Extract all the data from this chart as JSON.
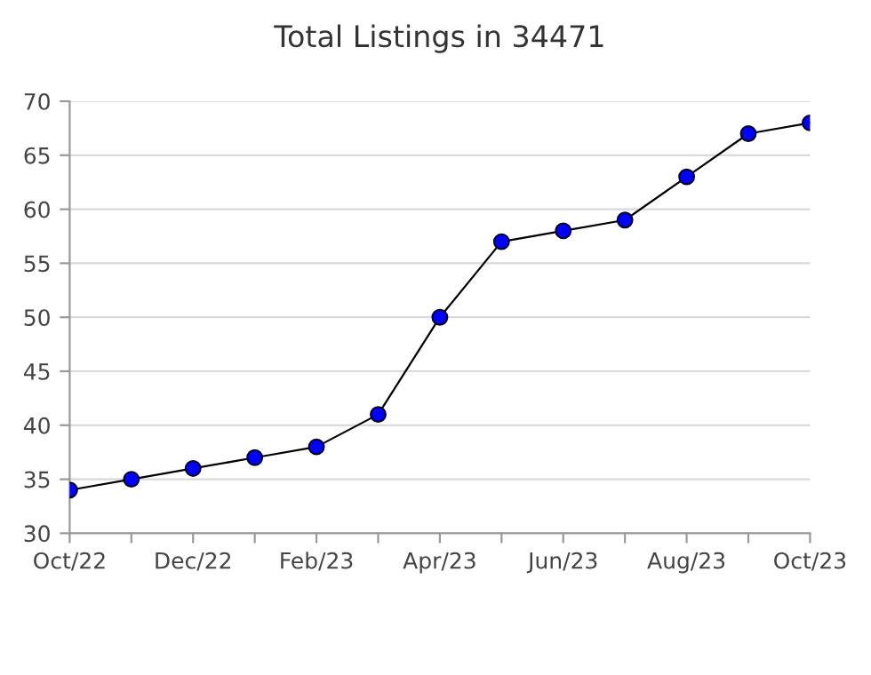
{
  "chart_data": {
    "type": "line",
    "title": "Total Listings in 34471",
    "categories": [
      "Oct/22",
      null,
      "Dec/22",
      null,
      "Feb/23",
      null,
      "Apr/23",
      null,
      "Jun/23",
      null,
      "Aug/23",
      null,
      "Oct/23"
    ],
    "series": [
      {
        "color": "#0000ff",
        "values": [
          34,
          35,
          36,
          37,
          38,
          41,
          50,
          57,
          58,
          59,
          63,
          67,
          68
        ]
      }
    ],
    "ylim": [
      30,
      70
    ],
    "yticks": [
      30,
      35,
      40,
      45,
      50,
      55,
      60,
      65,
      70
    ],
    "grid": "y",
    "marker": "circle",
    "line_style": "solid",
    "legend": false
  }
}
